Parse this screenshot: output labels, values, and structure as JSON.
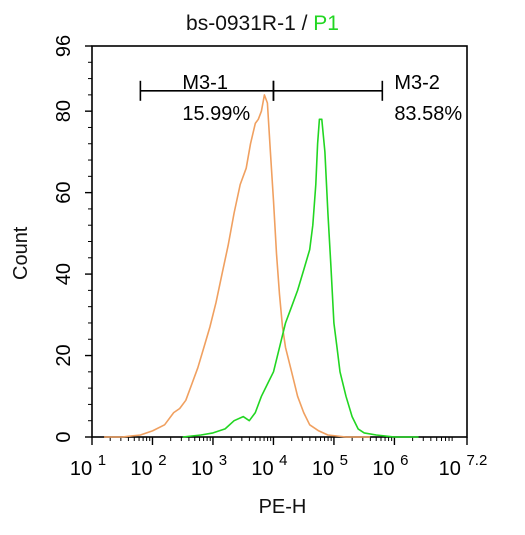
{
  "chart_data": {
    "type": "line",
    "title_main": "bs-0931R-1 / ",
    "title_gate": "P1",
    "xlabel": "PE-H",
    "ylabel": "Count",
    "x_scale": "log10",
    "xlim_log10": [
      1,
      7.2
    ],
    "x_ticks": [
      {
        "base": "10",
        "exp": "1",
        "pos": 1
      },
      {
        "base": "10",
        "exp": "2",
        "pos": 2
      },
      {
        "base": "10",
        "exp": "3",
        "pos": 3
      },
      {
        "base": "10",
        "exp": "4",
        "pos": 4
      },
      {
        "base": "10",
        "exp": "5",
        "pos": 5
      },
      {
        "base": "10",
        "exp": "6",
        "pos": 6
      },
      {
        "base": "10",
        "exp": "7.2",
        "pos": 7.2
      }
    ],
    "ylim": [
      0,
      96
    ],
    "y_ticks": [
      0,
      20,
      40,
      60,
      80,
      96
    ],
    "grid": false,
    "gates": [
      {
        "name": "M3-1",
        "percent": "15.99%",
        "from_log10": 1.8,
        "to_log10": 4.0,
        "y": 85
      },
      {
        "name": "M3-2",
        "percent": "83.58%",
        "from_log10": 4.0,
        "to_log10": 5.8,
        "y": 85
      }
    ],
    "series": [
      {
        "color": "#f0a060",
        "points": [
          [
            1.2,
            0
          ],
          [
            1.5,
            0
          ],
          [
            1.8,
            0.5
          ],
          [
            2.0,
            1.5
          ],
          [
            2.2,
            3
          ],
          [
            2.35,
            6
          ],
          [
            2.45,
            7
          ],
          [
            2.55,
            9
          ],
          [
            2.65,
            13
          ],
          [
            2.75,
            17
          ],
          [
            2.85,
            22
          ],
          [
            2.95,
            27
          ],
          [
            3.05,
            33
          ],
          [
            3.15,
            40
          ],
          [
            3.25,
            47
          ],
          [
            3.35,
            55
          ],
          [
            3.45,
            62
          ],
          [
            3.55,
            66
          ],
          [
            3.62,
            72
          ],
          [
            3.7,
            77
          ],
          [
            3.75,
            78
          ],
          [
            3.8,
            80
          ],
          [
            3.85,
            84
          ],
          [
            3.9,
            82
          ],
          [
            3.95,
            70
          ],
          [
            4.0,
            58
          ],
          [
            4.05,
            45
          ],
          [
            4.1,
            35
          ],
          [
            4.15,
            27
          ],
          [
            4.2,
            22
          ],
          [
            4.3,
            16
          ],
          [
            4.4,
            10
          ],
          [
            4.5,
            6
          ],
          [
            4.6,
            3
          ],
          [
            4.75,
            1.5
          ],
          [
            4.9,
            0.5
          ],
          [
            5.2,
            0
          ],
          [
            5.6,
            0
          ]
        ]
      },
      {
        "color": "#22d622",
        "points": [
          [
            2.5,
            0
          ],
          [
            2.8,
            0.5
          ],
          [
            3.0,
            1
          ],
          [
            3.2,
            2
          ],
          [
            3.35,
            4
          ],
          [
            3.5,
            5
          ],
          [
            3.6,
            4
          ],
          [
            3.7,
            6
          ],
          [
            3.8,
            10
          ],
          [
            3.9,
            13
          ],
          [
            4.0,
            16
          ],
          [
            4.1,
            22
          ],
          [
            4.2,
            28
          ],
          [
            4.3,
            32
          ],
          [
            4.4,
            36
          ],
          [
            4.5,
            41
          ],
          [
            4.6,
            46
          ],
          [
            4.65,
            52
          ],
          [
            4.7,
            62
          ],
          [
            4.73,
            72
          ],
          [
            4.76,
            78
          ],
          [
            4.8,
            78
          ],
          [
            4.85,
            70
          ],
          [
            4.9,
            55
          ],
          [
            4.95,
            42
          ],
          [
            5.0,
            28
          ],
          [
            5.05,
            22
          ],
          [
            5.1,
            16
          ],
          [
            5.2,
            10
          ],
          [
            5.3,
            5
          ],
          [
            5.4,
            2
          ],
          [
            5.5,
            1
          ],
          [
            5.7,
            0.5
          ],
          [
            6.0,
            0
          ],
          [
            6.4,
            0
          ]
        ]
      }
    ]
  }
}
